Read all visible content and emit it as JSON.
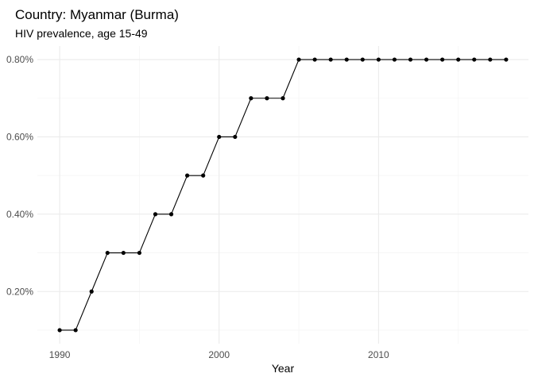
{
  "chart_data": {
    "type": "line",
    "title": "Country: Myanmar (Burma)",
    "subtitle": "HIV prevalence, age 15-49",
    "xlabel": "Year",
    "ylabel": "",
    "x": [
      1990,
      1991,
      1992,
      1993,
      1994,
      1995,
      1996,
      1997,
      1998,
      1999,
      2000,
      2001,
      2002,
      2003,
      2004,
      2005,
      2006,
      2007,
      2008,
      2009,
      2010,
      2011,
      2012,
      2013,
      2014,
      2015,
      2016,
      2017,
      2018
    ],
    "y": [
      0.1,
      0.1,
      0.2,
      0.3,
      0.3,
      0.3,
      0.4,
      0.4,
      0.5,
      0.5,
      0.6,
      0.6,
      0.7,
      0.7,
      0.7,
      0.8,
      0.8,
      0.8,
      0.8,
      0.8,
      0.8,
      0.8,
      0.8,
      0.8,
      0.8,
      0.8,
      0.8,
      0.8,
      0.8
    ],
    "xlim": [
      1988.6,
      2019.4
    ],
    "ylim": [
      0.065,
      0.835
    ],
    "x_ticks": [
      1990,
      2000,
      2010
    ],
    "x_minor_ticks": [
      1995,
      2005,
      2015
    ],
    "y_ticks": [
      0.2,
      0.4,
      0.6,
      0.8
    ],
    "y_tick_labels": [
      "0.20%",
      "0.40%",
      "0.60%",
      "0.80%"
    ],
    "y_minor_ticks": [
      0.1,
      0.3,
      0.5,
      0.7
    ],
    "grid": true,
    "legend": "none",
    "colors": {
      "line": "#000000",
      "point": "#000000",
      "grid_major": "#ebebeb",
      "grid_minor": "#f5f5f5",
      "background": "#ffffff"
    }
  }
}
